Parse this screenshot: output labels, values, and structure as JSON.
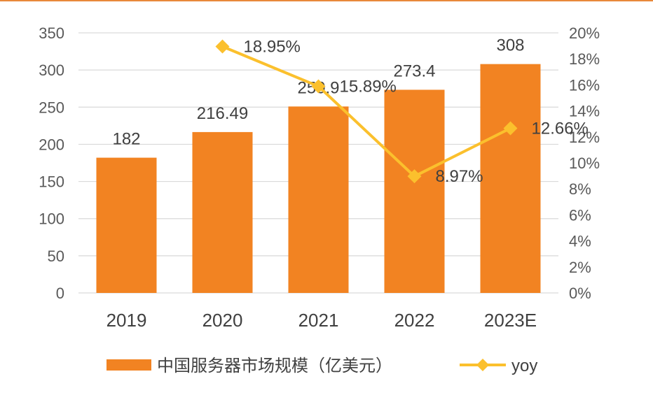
{
  "colors": {
    "bar": "#F28322",
    "line": "#FBC02D",
    "grid": "#D9D9D9",
    "frame": "#E8883A"
  },
  "chart_data": {
    "type": "bar",
    "categories": [
      "2019",
      "2020",
      "2021",
      "2022",
      "2023E"
    ],
    "series": [
      {
        "name": "中国服务器市场规模（亿美元）",
        "type": "bar",
        "axis": "left",
        "values": [
          182,
          216.49,
          250.9,
          273.4,
          308
        ],
        "labels": [
          "182",
          "216.49",
          "250.9",
          "273.4",
          "308"
        ]
      },
      {
        "name": "yoy",
        "type": "line",
        "axis": "right",
        "values": [
          null,
          18.95,
          15.89,
          8.97,
          12.66
        ],
        "labels": [
          "",
          "18.95%",
          "15.89%",
          "8.97%",
          "12.66%"
        ]
      }
    ],
    "y_left": {
      "range": [
        0,
        350
      ],
      "ticks": [
        "0",
        "50",
        "100",
        "150",
        "200",
        "250",
        "300",
        "350"
      ]
    },
    "y_right": {
      "range": [
        0,
        20
      ],
      "ticks": [
        "0%",
        "2%",
        "4%",
        "6%",
        "8%",
        "10%",
        "12%",
        "14%",
        "16%",
        "18%",
        "20%"
      ]
    },
    "grid": true,
    "legend_position": "bottom"
  }
}
